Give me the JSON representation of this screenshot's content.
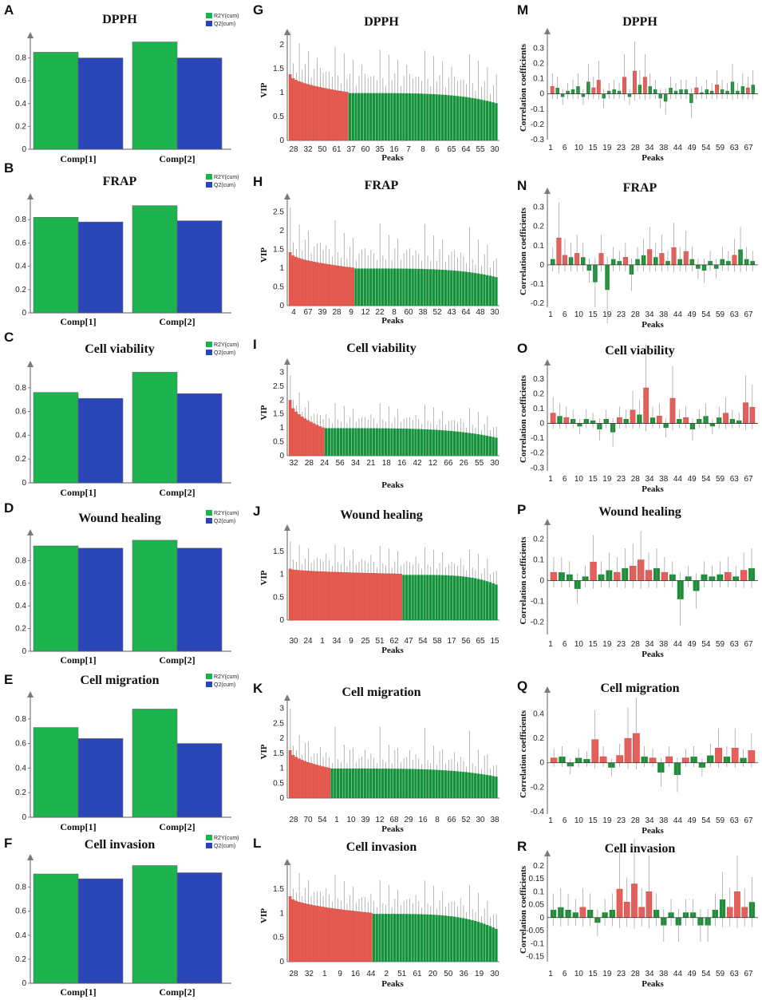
{
  "colors": {
    "green": "#1db34f",
    "blue": "#2a45b8",
    "vip_red": "#e8584f",
    "vip_green": "#13923b",
    "corr_red": "#ee5b58",
    "corr_green": "#1a8f36",
    "axis": "#7a7a7a"
  },
  "legend": {
    "r2y": "R2Y(cum)",
    "q2": "Q2(cum)"
  },
  "chart_data": [
    {
      "panel": "A",
      "type": "bar",
      "title": "DPPH",
      "categories": [
        "Comp[1]",
        "Comp[2]"
      ],
      "series": [
        {
          "name": "R2Y(cum)",
          "values": [
            0.85,
            0.94
          ]
        },
        {
          "name": "Q2(cum)",
          "values": [
            0.8,
            0.8
          ]
        }
      ],
      "yticks": [
        "0",
        "0.2",
        "0.4",
        "0.6",
        "0.8"
      ],
      "ylim": [
        0,
        1.0
      ]
    },
    {
      "panel": "B",
      "type": "bar",
      "title": "FRAP",
      "categories": [
        "Comp[1]",
        "Comp[2]"
      ],
      "series": [
        {
          "name": "R2Y(cum)",
          "values": [
            0.82,
            0.92
          ]
        },
        {
          "name": "Q2(cum)",
          "values": [
            0.78,
            0.79
          ]
        }
      ],
      "yticks": [
        "0",
        "0.2",
        "0.4",
        "0.6",
        "0.8"
      ],
      "ylim": [
        0,
        1.0
      ]
    },
    {
      "panel": "C",
      "type": "bar",
      "title": "Cell viability",
      "categories": [
        "Comp[1]",
        "Comp[2]"
      ],
      "series": [
        {
          "name": "R2Y(cum)",
          "values": [
            0.76,
            0.93
          ]
        },
        {
          "name": "Q2(cum)",
          "values": [
            0.71,
            0.75
          ]
        }
      ],
      "yticks": [
        "0",
        "0.2",
        "0.4",
        "0.6",
        "0.8"
      ],
      "ylim": [
        0,
        1.0
      ]
    },
    {
      "panel": "D",
      "type": "bar",
      "title": "Wound healing",
      "categories": [
        "Comp[1]",
        "Comp[2]"
      ],
      "series": [
        {
          "name": "R2Y(cum)",
          "values": [
            0.93,
            0.98
          ]
        },
        {
          "name": "Q2(cum)",
          "values": [
            0.91,
            0.91
          ]
        }
      ],
      "yticks": [
        "0",
        "0.2",
        "0.4",
        "0.6",
        "0.8"
      ],
      "ylim": [
        0,
        1.05
      ]
    },
    {
      "panel": "E",
      "type": "bar",
      "title": "Cell migration",
      "categories": [
        "Comp[1]",
        "Comp[2]"
      ],
      "series": [
        {
          "name": "R2Y(cum)",
          "values": [
            0.73,
            0.88
          ]
        },
        {
          "name": "Q2(cum)",
          "values": [
            0.64,
            0.6
          ]
        }
      ],
      "yticks": [
        "0",
        "0.2",
        "0.4",
        "0.6",
        "0.8"
      ],
      "ylim": [
        0,
        1.0
      ]
    },
    {
      "panel": "F",
      "type": "bar",
      "title": "Cell invasion",
      "categories": [
        "Comp[1]",
        "Comp[2]"
      ],
      "series": [
        {
          "name": "R2Y(cum)",
          "values": [
            0.91,
            0.98
          ]
        },
        {
          "name": "Q2(cum)",
          "values": [
            0.87,
            0.92
          ]
        }
      ],
      "yticks": [
        "0",
        "0.2",
        "0.4",
        "0.6",
        "0.8"
      ],
      "ylim": [
        0,
        1.05
      ]
    },
    {
      "panel": "G",
      "type": "bar",
      "title": "DPPH",
      "ylabel": "VIP",
      "xlabel": "Peaks",
      "yticks": [
        "0",
        "0.5",
        "1",
        "1.5",
        "2"
      ],
      "ylim": [
        0,
        2.1
      ],
      "xticks": [
        "28",
        "32",
        "50",
        "61",
        "37",
        "60",
        "35",
        "16",
        "7",
        "8",
        "6",
        "65",
        "64",
        "55",
        "30"
      ],
      "n": 70,
      "n_above_one": 20,
      "vip_start": 1.38,
      "vip_end": 0.78,
      "errors": [
        0.9,
        0.7,
        0.35,
        0.8,
        0.6
      ]
    },
    {
      "panel": "H",
      "type": "bar",
      "title": "FRAP",
      "ylabel": "VIP",
      "xlabel": "Peaks",
      "yticks": [
        "0",
        "0.5",
        "1",
        "1.5",
        "2",
        "2.5"
      ],
      "ylim": [
        0,
        2.7
      ],
      "xticks": [
        "4",
        "67",
        "39",
        "28",
        "9",
        "12",
        "22",
        "8",
        "60",
        "38",
        "52",
        "43",
        "64",
        "48",
        "30"
      ],
      "n": 70,
      "n_above_one": 22,
      "vip_start": 1.42,
      "vip_end": 0.76,
      "errors": [
        1.2,
        0.8,
        0.5,
        0.9,
        0.5
      ]
    },
    {
      "panel": "I",
      "type": "bar",
      "title": "Cell viability",
      "ylabel": "VIP",
      "xlabel": "Peaks",
      "yticks": [
        "0",
        "0.5",
        "1",
        "1.5",
        "2",
        "2.5",
        "3"
      ],
      "ylim": [
        0,
        3.1
      ],
      "xticks": [
        "32",
        "28",
        "24",
        "56",
        "34",
        "21",
        "18",
        "16",
        "42",
        "12",
        "66",
        "26",
        "55",
        "30"
      ],
      "n": 70,
      "n_above_one": 12,
      "vip_start": 2.0,
      "vip_end": 0.65,
      "errors": [
        0.9,
        0.7,
        0.5,
        0.8,
        0.4
      ]
    },
    {
      "panel": "J",
      "type": "bar",
      "title": "Wound healing",
      "ylabel": "VIP",
      "xlabel": "Peaks",
      "yticks": [
        "0",
        "0.5",
        "1",
        "1.5"
      ],
      "ylim": [
        0,
        1.85
      ],
      "xticks": [
        "30",
        "24",
        "1",
        "34",
        "9",
        "25",
        "51",
        "62",
        "47",
        "54",
        "58",
        "17",
        "56",
        "65",
        "15"
      ],
      "n": 70,
      "n_above_one": 38,
      "vip_start": 1.12,
      "vip_end": 0.78,
      "errors": [
        0.6,
        0.5,
        0.4,
        0.55,
        0.3
      ]
    },
    {
      "panel": "K",
      "type": "bar",
      "title": "Cell migration",
      "ylabel": "VIP",
      "xlabel": "Peaks",
      "yticks": [
        "0",
        "0.5",
        "1",
        "1.5",
        "2",
        "2.5",
        "3"
      ],
      "ylim": [
        0,
        3.1
      ],
      "xticks": [
        "28",
        "70",
        "54",
        "1",
        "10",
        "39",
        "12",
        "68",
        "29",
        "16",
        "8",
        "66",
        "52",
        "30",
        "38"
      ],
      "n": 70,
      "n_above_one": 14,
      "vip_start": 1.6,
      "vip_end": 0.72,
      "errors": [
        1.4,
        0.7,
        0.5,
        0.8,
        0.4
      ]
    },
    {
      "panel": "L",
      "type": "bar",
      "title": "Cell invasion",
      "ylabel": "VIP",
      "xlabel": "Peaks",
      "yticks": [
        "0",
        "0.5",
        "1",
        "1.5"
      ],
      "ylim": [
        0,
        1.9
      ],
      "xticks": [
        "28",
        "32",
        "1",
        "9",
        "16",
        "44",
        "2",
        "51",
        "61",
        "20",
        "50",
        "36",
        "19",
        "30"
      ],
      "n": 70,
      "n_above_one": 28,
      "vip_start": 1.35,
      "vip_end": 0.68,
      "errors": [
        0.7,
        0.5,
        0.4,
        0.6,
        0.3
      ]
    },
    {
      "panel": "M",
      "type": "bar",
      "title": "DPPH",
      "ylabel": "Correlation coefficients",
      "xlabel": "Peaks",
      "yticks": [
        "-0.3",
        "-0.2",
        "-0.1",
        "0",
        "0.1",
        "0.2",
        "0.3"
      ],
      "ylim": [
        -0.3,
        0.38
      ],
      "xticks": [
        "1",
        "6",
        "10",
        "15",
        "19",
        "23",
        "28",
        "34",
        "38",
        "44",
        "49",
        "54",
        "59",
        "63",
        "67"
      ],
      "values": [
        0.05,
        0.04,
        -0.02,
        0.02,
        0.03,
        0.05,
        -0.02,
        0.08,
        0.04,
        0.09,
        -0.03,
        0.02,
        0.03,
        0.02,
        0.11,
        -0.02,
        0.15,
        0.06,
        0.11,
        0.05,
        0.03,
        -0.03,
        -0.05,
        0.04,
        0.02,
        0.03,
        0.03,
        -0.06,
        0.04,
        0.01,
        0.03,
        0.02,
        0.06,
        0.03,
        0.02,
        0.08,
        0.02,
        0.05,
        0.04,
        0.06
      ]
    },
    {
      "panel": "N",
      "type": "bar",
      "title": "FRAP",
      "ylabel": "Correlation coefficients",
      "xlabel": "Peaks",
      "yticks": [
        "-0.2",
        "-0.1",
        "0",
        "0.1",
        "0.2",
        "0.3"
      ],
      "ylim": [
        -0.22,
        0.36
      ],
      "xticks": [
        "1",
        "6",
        "10",
        "15",
        "19",
        "23",
        "28",
        "34",
        "38",
        "44",
        "49",
        "54",
        "59",
        "63",
        "67"
      ],
      "values": [
        0.03,
        0.14,
        0.05,
        0.04,
        0.06,
        0.04,
        -0.03,
        -0.09,
        0.06,
        -0.13,
        0.03,
        0.02,
        0.04,
        -0.05,
        0.03,
        0.05,
        0.08,
        0.04,
        0.06,
        0.02,
        0.09,
        0.03,
        0.07,
        0.03,
        -0.02,
        -0.03,
        0.02,
        -0.02,
        0.03,
        0.02,
        0.05,
        0.08,
        0.03,
        0.02
      ]
    },
    {
      "panel": "O",
      "type": "bar",
      "title": "Cell viability",
      "ylabel": "Correlation coefficients",
      "xlabel": "Peaks",
      "yticks": [
        "-0.3",
        "-0.2",
        "-0.1",
        "0",
        "0.1",
        "0.2",
        "0.3"
      ],
      "ylim": [
        -0.32,
        0.38
      ],
      "xticks": [
        "1",
        "6",
        "10",
        "15",
        "19",
        "23",
        "28",
        "34",
        "38",
        "44",
        "49",
        "54",
        "59",
        "63",
        "67"
      ],
      "values": [
        0.07,
        0.05,
        0.04,
        0.03,
        -0.02,
        0.03,
        0.02,
        -0.04,
        0.03,
        -0.06,
        0.04,
        0.03,
        0.09,
        0.06,
        0.24,
        0.04,
        0.05,
        -0.03,
        0.17,
        0.03,
        0.04,
        -0.04,
        0.03,
        0.05,
        -0.02,
        0.04,
        0.07,
        0.03,
        0.02,
        0.14,
        0.11
      ]
    },
    {
      "panel": "P",
      "type": "bar",
      "title": "Wound healing",
      "ylabel": "Correlation coefficients",
      "xlabel": "Peaks",
      "yticks": [
        "-0.2",
        "-0.1",
        "0",
        "0.1",
        "0.2"
      ],
      "ylim": [
        -0.26,
        0.26
      ],
      "xticks": [
        "1",
        "6",
        "10",
        "15",
        "19",
        "23",
        "28",
        "34",
        "38",
        "44",
        "49",
        "54",
        "59",
        "63",
        "67"
      ],
      "values": [
        0.04,
        0.04,
        0.03,
        -0.04,
        0.02,
        0.09,
        0.03,
        0.05,
        0.04,
        0.06,
        0.07,
        0.1,
        0.05,
        0.06,
        0.04,
        0.03,
        -0.09,
        0.02,
        -0.05,
        0.03,
        0.02,
        0.03,
        0.04,
        0.02,
        0.05,
        0.06
      ]
    },
    {
      "panel": "Q",
      "type": "bar",
      "title": "Cell migration",
      "ylabel": "Correlation coefficients",
      "xlabel": "Peaks",
      "yticks": [
        "-0.4",
        "-0.2",
        "0",
        "0.2",
        "0.4"
      ],
      "ylim": [
        -0.42,
        0.56
      ],
      "xticks": [
        "1",
        "6",
        "10",
        "15",
        "19",
        "23",
        "28",
        "34",
        "38",
        "44",
        "49",
        "54",
        "59",
        "63",
        "67"
      ],
      "values": [
        0.04,
        0.05,
        -0.03,
        0.04,
        0.03,
        0.19,
        0.05,
        -0.04,
        0.06,
        0.2,
        0.24,
        0.05,
        0.04,
        -0.08,
        0.05,
        -0.1,
        0.04,
        0.05,
        -0.04,
        0.06,
        0.12,
        0.05,
        0.12,
        0.04,
        0.1
      ]
    },
    {
      "panel": "R",
      "type": "bar",
      "title": "Cell invasion",
      "ylabel": "Correlation coefficients",
      "xlabel": "Peaks",
      "yticks": [
        "-0.15",
        "-0.1",
        "-0.05",
        "0",
        "0.05",
        "0.1",
        "0.15",
        "0.2"
      ],
      "ylim": [
        -0.17,
        0.23
      ],
      "xticks": [
        "1",
        "6",
        "10",
        "15",
        "19",
        "23",
        "28",
        "34",
        "38",
        "44",
        "49",
        "54",
        "59",
        "63",
        "67"
      ],
      "values": [
        0.03,
        0.04,
        0.03,
        0.02,
        0.04,
        0.03,
        -0.02,
        0.02,
        0.03,
        0.11,
        0.06,
        0.13,
        0.04,
        0.1,
        0.03,
        -0.03,
        0.02,
        -0.03,
        0.02,
        0.02,
        -0.03,
        -0.03,
        0.03,
        0.07,
        0.04,
        0.1,
        0.04,
        0.06
      ]
    }
  ]
}
